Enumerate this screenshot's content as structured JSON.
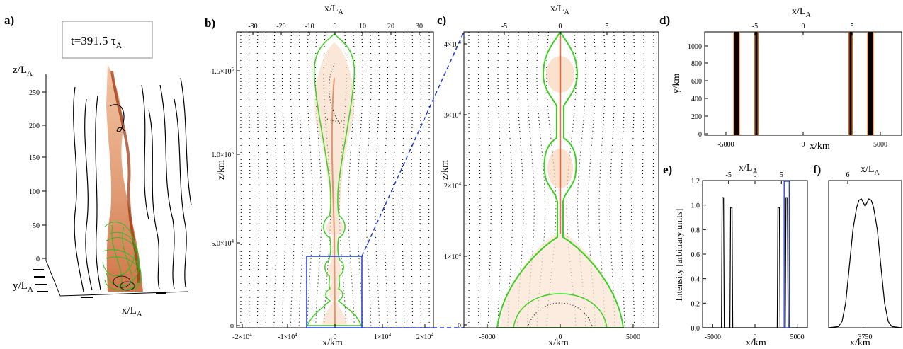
{
  "panel_a": {
    "label": "a)",
    "time_label": "t=391.5 τ",
    "time_sub": "A",
    "z_axis": "z/L",
    "y_axis": "y/L",
    "x_axis": "x/L",
    "sub": "A",
    "z_ticks": [
      "250",
      "200",
      "150",
      "100",
      "50",
      "0"
    ]
  },
  "panel_b": {
    "label": "b)",
    "top_axis": "x/L",
    "top_sub": "A",
    "top_ticks": [
      "-30",
      "-20",
      "-10",
      "0",
      "10",
      "20",
      "30"
    ],
    "left_axis": "z/km",
    "left_ticks": [
      "0",
      "5.0×10",
      "1.0×10",
      "1.5×10"
    ],
    "left_exps": [
      "",
      "4",
      "5",
      "5"
    ],
    "bottom_axis": "x/km",
    "bottom_ticks": [
      "-2×10",
      "-1×10",
      "0",
      "1×10",
      "2×10"
    ],
    "bottom_exps": [
      "4",
      "4",
      "",
      "4",
      "4"
    ]
  },
  "panel_c": {
    "label": "c)",
    "top_axis": "x/L",
    "top_sub": "A",
    "top_ticks": [
      "-5",
      "0",
      "5"
    ],
    "left_axis": "z/km",
    "left_ticks": [
      "0",
      "1×10",
      "2×10",
      "3×10",
      "4×10"
    ],
    "left_exps": [
      "",
      "4",
      "4",
      "4",
      "4"
    ],
    "bottom_axis": "x/km",
    "bottom_ticks": [
      "-5000",
      "0",
      "5000"
    ]
  },
  "panel_d": {
    "label": "d)",
    "top_axis": "x/L",
    "top_sub": "A",
    "top_ticks": [
      "-5",
      "0",
      "5"
    ],
    "left_axis": "y/km",
    "left_ticks": [
      "0",
      "200",
      "400",
      "600",
      "800",
      "1000"
    ],
    "bottom_axis": "x/km",
    "bottom_ticks": [
      "-5000",
      "0",
      "5000"
    ]
  },
  "chart_data": [
    {
      "type": "line",
      "panel": "e)",
      "top_axis": "x/L",
      "top_sub": "A",
      "top_ticks": [
        "-5",
        "0",
        "5"
      ],
      "ylabel": "Intensity [arbitrary units]",
      "xlabel": "x/km",
      "y_ticks": [
        "0.0",
        "0.2",
        "0.4",
        "0.6",
        "0.8",
        "1.0",
        "1.2"
      ],
      "x_ticks": [
        "-5000",
        "0",
        "5000"
      ],
      "xlim": [
        -6200,
        6200
      ],
      "ylim": [
        0,
        1.2
      ],
      "peaks": [
        {
          "x": -3800,
          "y": 1.06
        },
        {
          "x": -2800,
          "y": 0.98
        },
        {
          "x": 2800,
          "y": 0.98
        },
        {
          "x": 3750,
          "y": 1.06
        }
      ]
    },
    {
      "type": "line",
      "panel": "f)",
      "top_axis": "x/L",
      "top_sub": "A",
      "top_ticks": [
        "6"
      ],
      "xlabel": "x/km",
      "x_ticks": [
        "3750"
      ],
      "xlim": [
        3450,
        4050
      ],
      "ylim": [
        0,
        1.2
      ],
      "x": [
        3450,
        3530,
        3560,
        3590,
        3620,
        3650,
        3680,
        3700,
        3720,
        3735,
        3750,
        3765,
        3780,
        3800,
        3820,
        3850,
        3880,
        3910,
        3940,
        3970,
        4050
      ],
      "y": [
        0,
        0.01,
        0.05,
        0.2,
        0.5,
        0.8,
        0.98,
        1.04,
        1.05,
        1.02,
        0.99,
        1.02,
        1.05,
        1.04,
        0.98,
        0.8,
        0.5,
        0.2,
        0.05,
        0.01,
        0
      ]
    }
  ]
}
